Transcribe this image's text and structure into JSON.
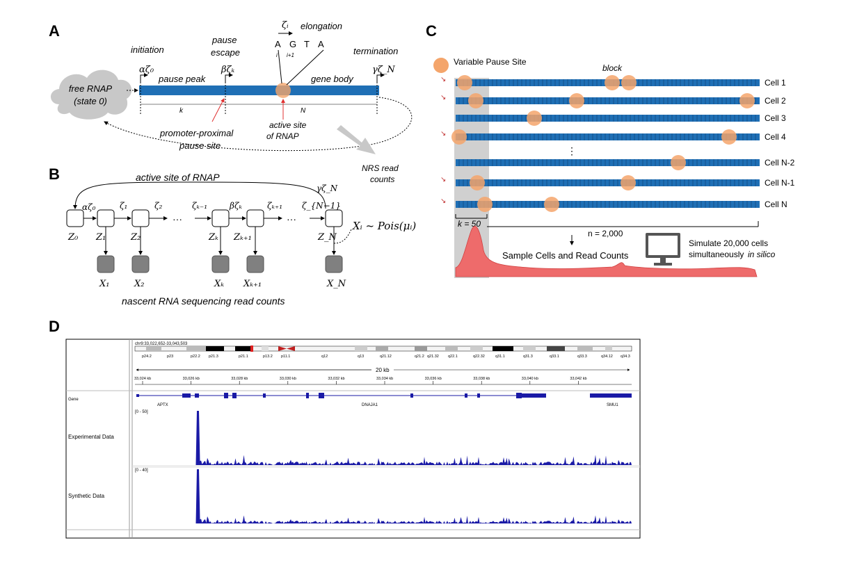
{
  "panels": {
    "a": {
      "letter": "A",
      "free_rnap": [
        "free RNAP",
        "(state 0)"
      ],
      "initiation": "initiation",
      "initiation_rate": "αζ₀",
      "pause_escape": [
        "pause",
        "escape"
      ],
      "pause_escape_rate": "βζₖ",
      "elongation": "elongation",
      "elongation_rate": "ζᵢ",
      "nucleotides": [
        "A",
        "G",
        "T",
        "A"
      ],
      "nuc_idx": [
        "i",
        "i+1"
      ],
      "termination": "termination",
      "termination_rate": "γζ_N",
      "pause_peak": "pause peak",
      "gene_body": "gene body",
      "k": "k",
      "N": "N",
      "promoter_label": [
        "promoter-proximal",
        "pause site"
      ],
      "active_site_label": [
        "active site",
        "of RNAP"
      ],
      "nrs_label": [
        "NRS read",
        "counts"
      ]
    },
    "b": {
      "letter": "B",
      "active_site": "active site of RNAP",
      "gamma": "γζ_N",
      "rates": [
        "αζ₀",
        "ζ₁",
        "ζ₂",
        "ζₖ₋₁",
        "βζₖ",
        "ζₖ₊₁",
        "ζ_{N−1}"
      ],
      "states": [
        "Z₀",
        "Z₁",
        "Z₂",
        "Zₖ",
        "Zₖ₊₁",
        "Z_N"
      ],
      "obs": [
        "X₁",
        "X₂",
        "Xₖ",
        "Xₖ₊₁",
        "X_N"
      ],
      "dots": "···",
      "poisson": "Xᵢ ~ Pois(μᵢ)",
      "caption": "nascent RNA sequencing read counts"
    },
    "c": {
      "letter": "C",
      "legend": "Variable Pause Site",
      "block": "block",
      "cells": [
        "Cell 1",
        "Cell 2",
        "Cell 3",
        "Cell 4",
        "Cell N-2",
        "Cell N-1",
        "Cell N"
      ],
      "vdots": "⋮",
      "k_label": "k = 50",
      "n_label": "n = 2,000",
      "sample": "Sample Cells and Read Counts",
      "simulate": [
        "Simulate 20,000 cells",
        "simultaneously",
        "in silico"
      ]
    },
    "d": {
      "letter": "D",
      "locus": "chr9:33,022,652-33,043,503",
      "bands": [
        "p24.2",
        "p23",
        "p22.2",
        "p21.3",
        "p21.1",
        "p13.2",
        "p11.1",
        "q12",
        "q13",
        "q21.12",
        "q21.2",
        "q21.32",
        "q22.1",
        "q22.32",
        "q31.1",
        "q31.3",
        "q33.1",
        "q33.3",
        "q34.12",
        "q34.3"
      ],
      "span": "20 kb",
      "ticks": [
        "33,024 kb",
        "33,026 kb",
        "33,028 kb",
        "33,030 kb",
        "33,032 kb",
        "33,034 kb",
        "33,036 kb",
        "33,038 kb",
        "33,040 kb",
        "33,042 kb"
      ],
      "gene_track": "Gene",
      "genes": [
        "APTX",
        "DNAJA1",
        "SMU1"
      ],
      "exp_range": "[0 - 50]",
      "syn_range": "[0 - 40]",
      "exp_label": "Experimental Data",
      "syn_label": "Synthetic Data"
    }
  },
  "colors": {
    "blue": "#1f6fb5",
    "orange": "#f4a56b",
    "gray": "#c8c8c8",
    "red": "#e85a5a",
    "navy": "#1a1aa6"
  }
}
